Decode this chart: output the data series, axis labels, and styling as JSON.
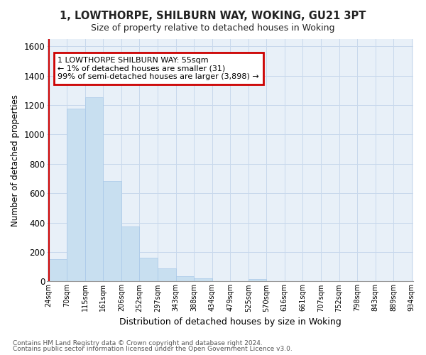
{
  "title": "1, LOWTHORPE, SHILBURN WAY, WOKING, GU21 3PT",
  "subtitle": "Size of property relative to detached houses in Woking",
  "xlabel": "Distribution of detached houses by size in Woking",
  "ylabel": "Number of detached properties",
  "footnote1": "Contains HM Land Registry data © Crown copyright and database right 2024.",
  "footnote2": "Contains public sector information licensed under the Open Government Licence v3.0.",
  "bin_labels": [
    "24sqm",
    "70sqm",
    "115sqm",
    "161sqm",
    "206sqm",
    "252sqm",
    "297sqm",
    "343sqm",
    "388sqm",
    "434sqm",
    "479sqm",
    "525sqm",
    "570sqm",
    "616sqm",
    "661sqm",
    "707sqm",
    "752sqm",
    "798sqm",
    "843sqm",
    "889sqm",
    "934sqm"
  ],
  "bar_heights": [
    150,
    1175,
    1255,
    685,
    375,
    160,
    90,
    35,
    20,
    0,
    0,
    15,
    0,
    0,
    0,
    0,
    0,
    0,
    0,
    0
  ],
  "bar_color": "#c8dff0",
  "bar_edge_color": "#a8c8e8",
  "highlight_line_color": "#cc0000",
  "ylim": [
    0,
    1650
  ],
  "yticks": [
    0,
    200,
    400,
    600,
    800,
    1000,
    1200,
    1400,
    1600
  ],
  "annotation_title": "1 LOWTHORPE SHILBURN WAY: 55sqm",
  "annotation_line1": "← 1% of detached houses are smaller (31)",
  "annotation_line2": "99% of semi-detached houses are larger (3,898) →",
  "annotation_box_color": "#ffffff",
  "annotation_box_edge": "#cc0000",
  "grid_color": "#c8d8ec",
  "background_color": "#ffffff",
  "plot_bg_color": "#e8f0f8"
}
